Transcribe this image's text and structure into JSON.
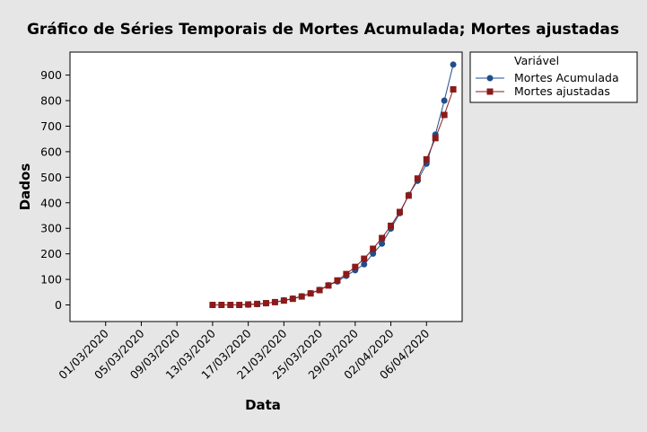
{
  "chart_data": {
    "type": "line",
    "title": "Gráfico de Séries Temporais de Mortes Acumulada; Mortes ajustadas",
    "xlabel": "Data",
    "ylabel": "Dados",
    "x_is_date": true,
    "x_tick_labels": [
      "01/03/2020",
      "05/03/2020",
      "09/03/2020",
      "13/03/2020",
      "17/03/2020",
      "21/03/2020",
      "25/03/2020",
      "29/03/2020",
      "02/04/2020",
      "06/04/2020"
    ],
    "xlim": [
      "2020-02-26",
      "2020-04-10"
    ],
    "ylim": [
      -65,
      990
    ],
    "y_ticks": [
      0,
      100,
      200,
      300,
      400,
      500,
      600,
      700,
      800,
      900
    ],
    "grid": false,
    "legend": {
      "title": "Variável",
      "placement": "right"
    },
    "colors": {
      "plot_bg": "#ffffff",
      "outer_bg": "#e6e6e6",
      "series1": "#1f4e8c",
      "series2": "#8b1a1a"
    },
    "x": [
      "2020-03-13",
      "2020-03-14",
      "2020-03-15",
      "2020-03-16",
      "2020-03-17",
      "2020-03-18",
      "2020-03-19",
      "2020-03-20",
      "2020-03-21",
      "2020-03-22",
      "2020-03-23",
      "2020-03-24",
      "2020-03-25",
      "2020-03-26",
      "2020-03-27",
      "2020-03-28",
      "2020-03-29",
      "2020-03-30",
      "2020-03-31",
      "2020-04-01",
      "2020-04-02",
      "2020-04-03",
      "2020-04-04",
      "2020-04-05",
      "2020-04-06",
      "2020-04-07",
      "2020-04-08",
      "2020-04-09"
    ],
    "series": [
      {
        "name": "Mortes Acumulada",
        "marker": "circle",
        "values": [
          0,
          0,
          0,
          0,
          1,
          3,
          6,
          11,
          18,
          25,
          34,
          46,
          59,
          77,
          92,
          114,
          136,
          159,
          201,
          240,
          299,
          359,
          431,
          486,
          553,
          667,
          800,
          941
        ]
      },
      {
        "name": "Mortes ajustadas",
        "marker": "square",
        "values": [
          0,
          0,
          0,
          0,
          2,
          4,
          7,
          11,
          17,
          24,
          33,
          45,
          58,
          76,
          96,
          121,
          149,
          181,
          220,
          262,
          310,
          364,
          428,
          495,
          570,
          653,
          744,
          844
        ]
      }
    ]
  }
}
